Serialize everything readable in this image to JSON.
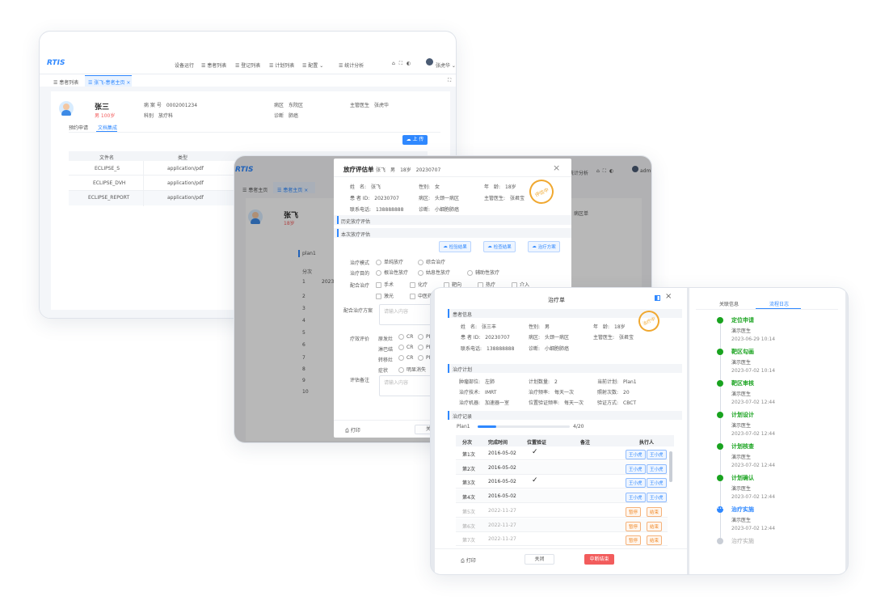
{
  "win1": {
    "logo": "RTIS",
    "nav": [
      "设备运行",
      "患者列表",
      "登记列表",
      "计划列表",
      "配置",
      "统计分析"
    ],
    "user": "张虎华",
    "tabs": [
      "患者列表",
      "张飞-患者主页"
    ],
    "patient": {
      "name": "张三",
      "sex_age": "男 100岁",
      "id_label": "病 案 号",
      "id": "0002001234",
      "dept_label": "科别",
      "dept": "放疗科",
      "ward_label": "病区",
      "ward": "东院区",
      "diag_label": "诊断",
      "diag": "肺癌",
      "doctor_label": "主管医生",
      "doctor": "张虎华"
    },
    "subtabs": [
      "预约申请",
      "文档集成"
    ],
    "upload": "上 传",
    "table": {
      "headers": [
        "文件名",
        "类型"
      ],
      "rows": [
        [
          "ECLIPSE_S",
          "application/pdf"
        ],
        [
          "ECLIPSE_DVH",
          "application/pdf"
        ],
        [
          "ECLIPSE_REPORT",
          "application/pdf"
        ]
      ]
    }
  },
  "win2": {
    "logo": "RTIS",
    "tabs": [
      "患者主页",
      "患者主页"
    ],
    "patient_name": "张飞",
    "patient_sexage": "18岁",
    "nav_right": "统计分析",
    "user": "admin",
    "plan_label": "plan1",
    "col_label": "分次",
    "date": "2023",
    "rows": [
      "1",
      "2",
      "3",
      "4",
      "5",
      "6",
      "7",
      "8",
      "9",
      "10"
    ],
    "side_label": "病区单"
  },
  "assess": {
    "title": "放疗评估单",
    "head_name": "张飞",
    "head_sex": "男",
    "head_age": "18岁",
    "head_date": "20230707",
    "name_label": "姓　名:",
    "name": "张飞",
    "sex_label": "性别:",
    "sex": "女",
    "age_label": "年　龄:",
    "age": "18岁",
    "id_label": "患 者 ID:",
    "id": "20230707",
    "ward_label": "病区:",
    "ward": "头颈一病区",
    "doctor_label": "主管医生:",
    "doctor": "张君宝",
    "phone_label": "联系电话:",
    "phone": "138888888",
    "diag_label": "诊断:",
    "diag": "小细胞肺癌",
    "stamp": "评估中",
    "sec_history": "历史放疗评估",
    "sec_current": "本次放疗评估",
    "upload_btns": [
      "检验结果",
      "检查结果",
      "治疗方案"
    ],
    "mode_label": "治疗模式",
    "modes": [
      "单纯放疗",
      "综合治疗"
    ],
    "goal_label": "治疗目的",
    "goals": [
      "根治性放疗",
      "姑息性放疗",
      "辅助性放疗"
    ],
    "combo_label": "配合治疗",
    "combos": [
      "手术",
      "化疗",
      "靶向",
      "热疗",
      "介入",
      "激光",
      "中医药"
    ],
    "combo_plan_label": "配合治疗方案",
    "placeholder": "请输入内容",
    "effect_label": "疗效评价",
    "effects": [
      "原发灶",
      "淋巴结",
      "转移灶",
      "症状"
    ],
    "effect_opts": [
      "CR",
      "PR"
    ],
    "symptom_opt": "明显消失",
    "notes_label": "评估备注",
    "print": "打印",
    "close": "关闭"
  },
  "treat": {
    "title": "治疗单",
    "sec_patient": "患者信息",
    "name_label": "姓　名:",
    "name": "张三丰",
    "sex_label": "性别:",
    "sex": "男",
    "age_label": "年　龄:",
    "age": "18岁",
    "id_label": "患 者 ID:",
    "id": "20230707",
    "ward_label": "病区:",
    "ward": "头颈一病区",
    "doctor_label": "主管医生:",
    "doctor": "张君宝",
    "phone_label": "联系电话:",
    "phone": "138888888",
    "diag_label": "诊断:",
    "diag": "小细胞肺癌",
    "stamp": "治疗中",
    "sec_plan": "治疗计划",
    "site_label": "肿瘤部位:",
    "site": "左肺",
    "count_label": "计划数量:",
    "count": "2",
    "cur_label": "当前计划:",
    "cur": "Plan1",
    "tech_label": "治疗技术:",
    "tech": "IMRT",
    "freq_label": "治疗频率:",
    "freq": "每天一次",
    "frac_label": "照射次数:",
    "frac": "20",
    "machine_label": "治疗机器:",
    "machine": "加速器一室",
    "verify_freq_label": "位置验证频率:",
    "verify_freq": "每天一次",
    "verify_mode_label": "验证方式:",
    "verify_mode": "CBCT",
    "sec_record": "治疗记录",
    "plan_name": "Plan1",
    "progress_text": "4/20",
    "progress": 0.2,
    "headers": [
      "分次",
      "完成时间",
      "位置验证",
      "备注",
      "执行人"
    ],
    "rows": [
      {
        "n": "第1次",
        "date": "2016-05-02",
        "check": "✓",
        "a": "王小虎",
        "b": "王小虎",
        "type": "done"
      },
      {
        "n": "第2次",
        "date": "2016-05-02",
        "check": "",
        "a": "王小虎",
        "b": "王小虎",
        "type": "done"
      },
      {
        "n": "第3次",
        "date": "2016-05-02",
        "check": "✓",
        "a": "王小虎",
        "b": "王小虎",
        "type": "done"
      },
      {
        "n": "第4次",
        "date": "2016-05-02",
        "check": "",
        "a": "王小虎",
        "b": "王小虎",
        "type": "done"
      },
      {
        "n": "第5次",
        "date": "2022-11-27",
        "check": "",
        "a": "暂停",
        "b": "结束",
        "type": "pending"
      },
      {
        "n": "第6次",
        "date": "2022-11-27",
        "check": "",
        "a": "暂停",
        "b": "结束",
        "type": "pending"
      },
      {
        "n": "第7次",
        "date": "2022-11-27",
        "check": "",
        "a": "暂停",
        "b": "结束",
        "type": "pending"
      }
    ],
    "print": "打印",
    "close": "关闭",
    "end_btn": "中断结束",
    "side_tabs": [
      "关联信息",
      "流程日志"
    ],
    "timeline": [
      {
        "title": "定位申请",
        "who": "演示医生",
        "time": "2023-06-29 10:14",
        "state": "done"
      },
      {
        "title": "靶区勾画",
        "who": "演示医生",
        "time": "2023-07-02 10:14",
        "state": "done"
      },
      {
        "title": "靶区审核",
        "who": "演示医生",
        "time": "2023-07-02 12:44",
        "state": "done"
      },
      {
        "title": "计划设计",
        "who": "演示医生",
        "time": "2023-07-02 12:44",
        "state": "done"
      },
      {
        "title": "计划核查",
        "who": "演示医生",
        "time": "2023-07-02 12:44",
        "state": "done"
      },
      {
        "title": "计划确认",
        "who": "演示医生",
        "time": "2023-07-02 12:44",
        "state": "done"
      },
      {
        "title": "治疗实施",
        "who": "演示医生",
        "time": "2023-07-02 12:44",
        "state": "current"
      },
      {
        "title": "治疗实施",
        "who": "",
        "time": "",
        "state": "todo"
      }
    ]
  },
  "colors": {
    "accent": "#2f88ff",
    "green": "#19a31f",
    "orange": "#f0a830",
    "danger": "#f25c5c"
  }
}
